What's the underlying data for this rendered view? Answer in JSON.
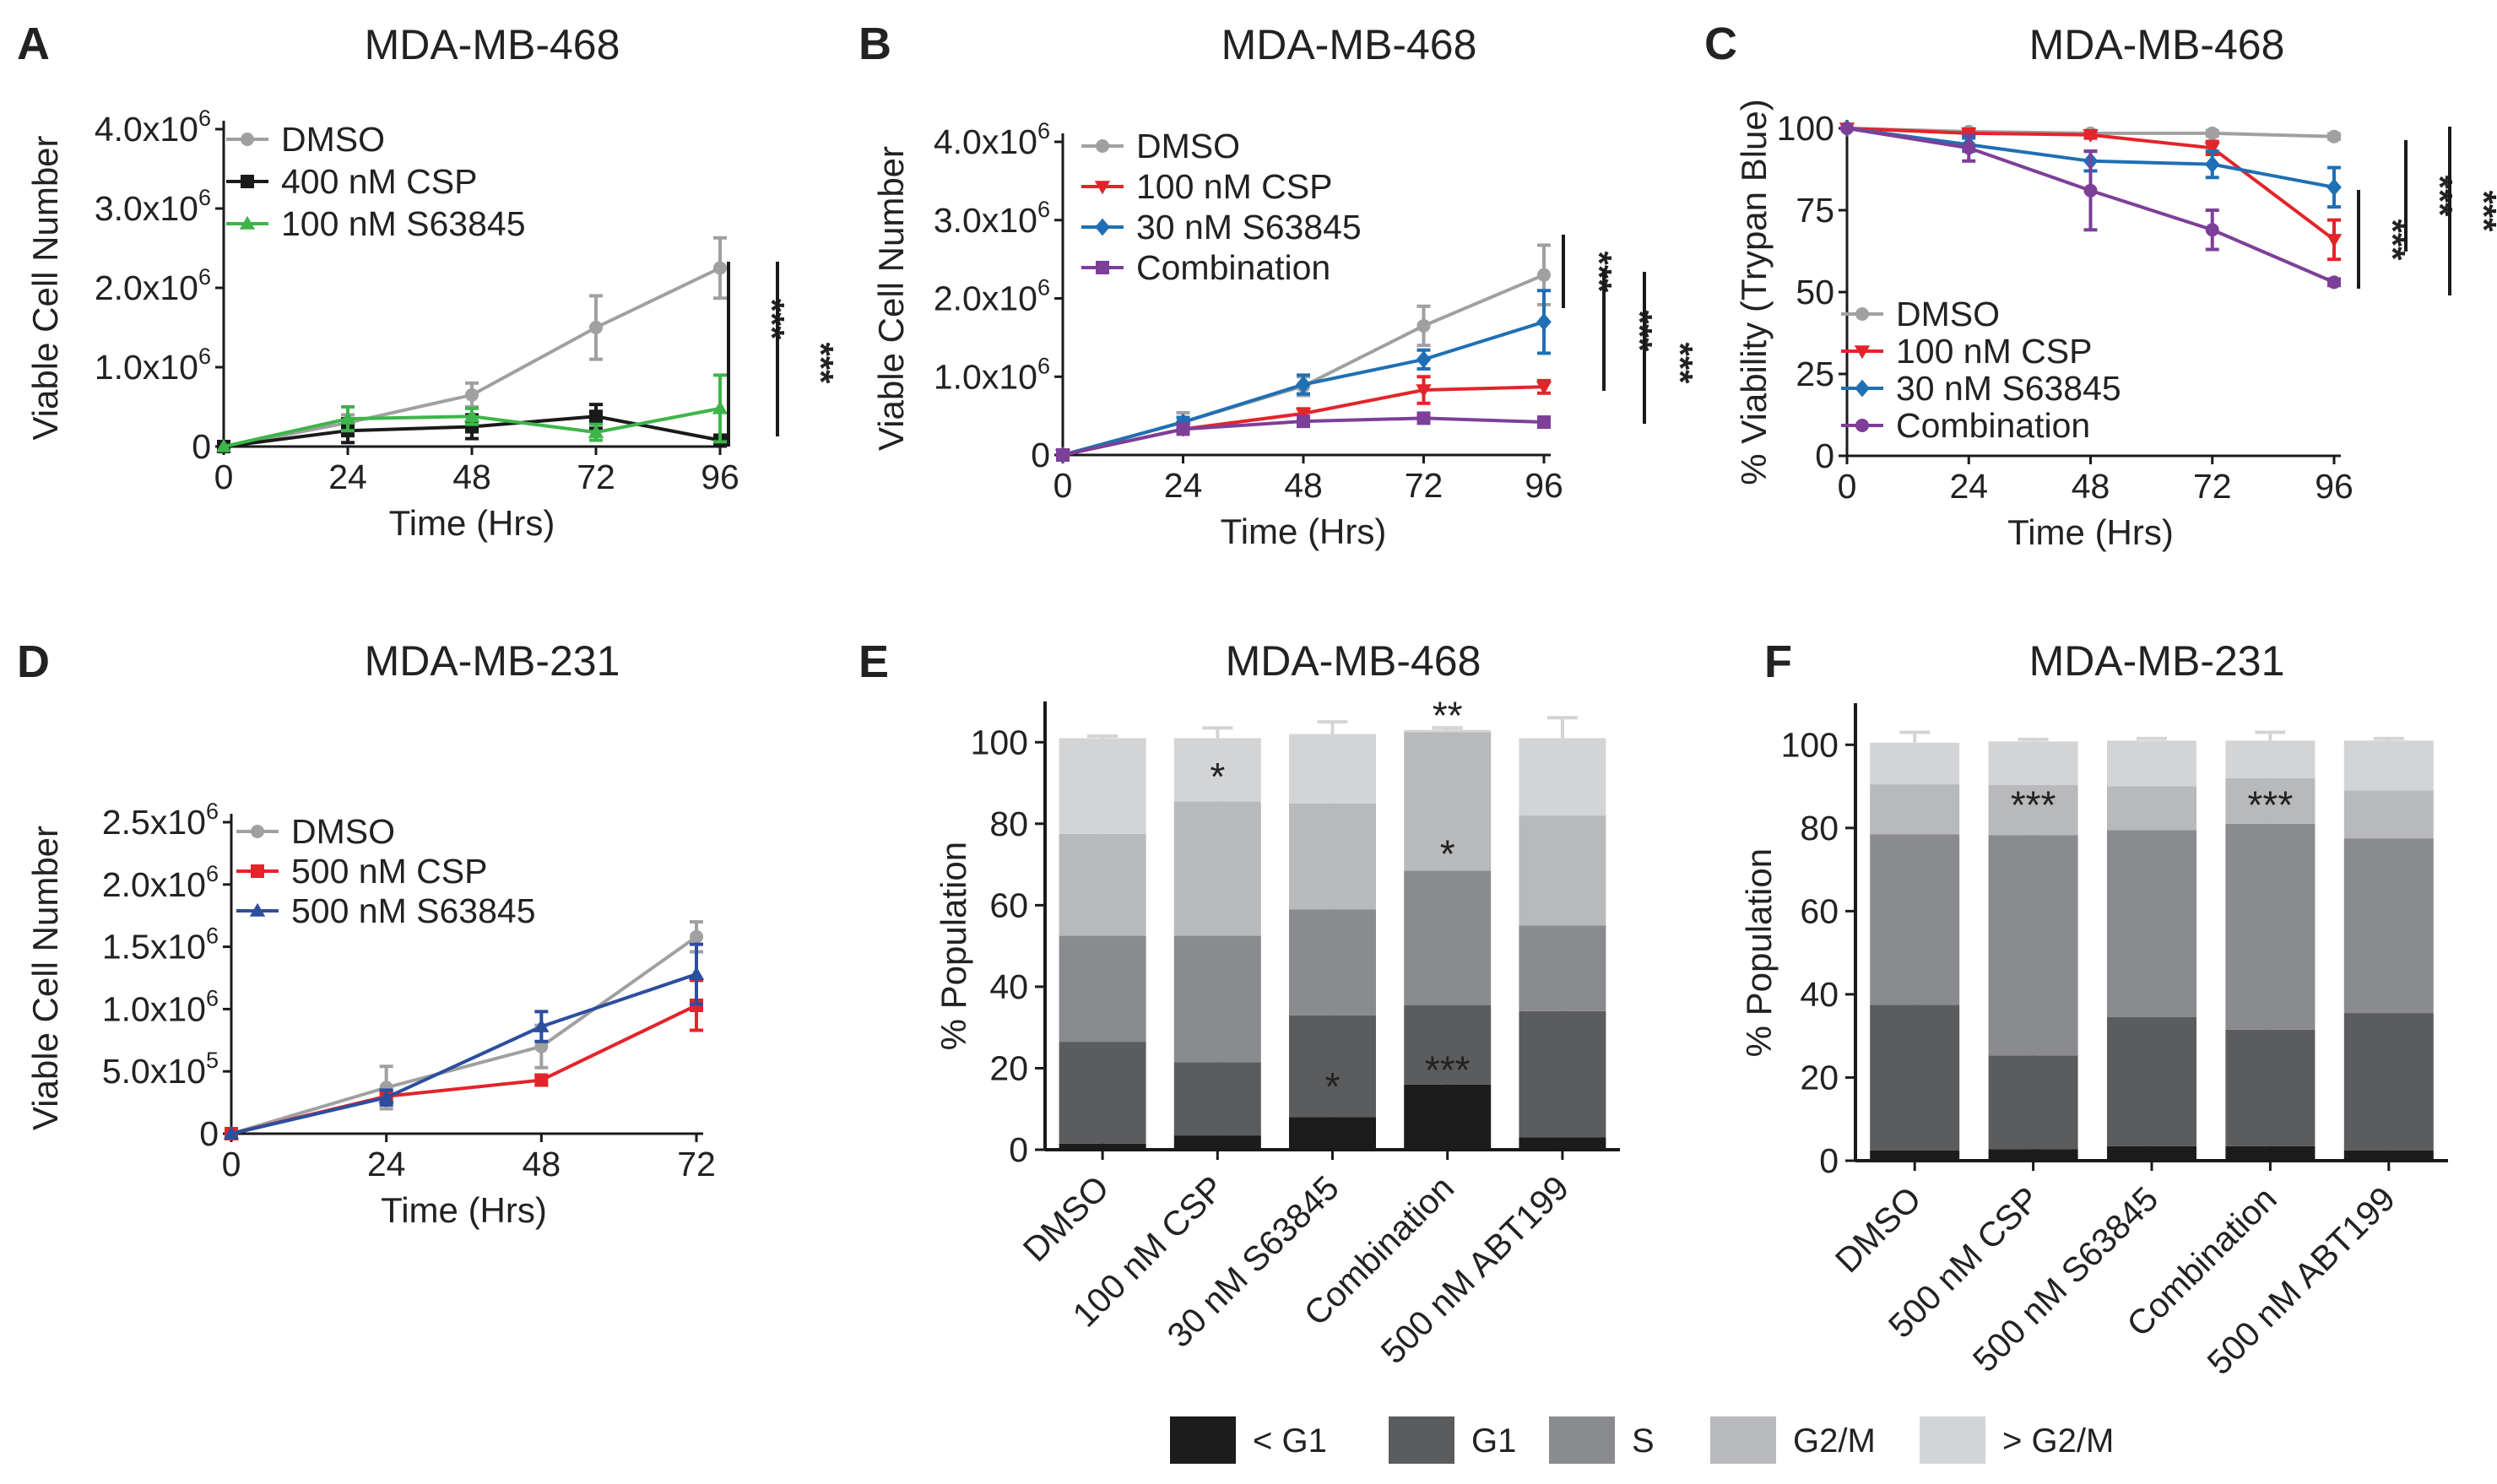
{
  "figure": {
    "legend_cell_cycle": [
      "< G1",
      "G1",
      "S",
      "G2/M",
      "> G2/M"
    ],
    "phase_colors": [
      "#1c1c1c",
      "#5b5c5e",
      "#8a8b8e",
      "#b8b9bb",
      "#d3d4d6"
    ]
  },
  "chart_data": [
    {
      "panel": "A",
      "title": "MDA-MB-468",
      "type": "line",
      "xlabel": "Time (Hrs)",
      "ylabel": "Viable Cell Number",
      "xlim": [
        0,
        96
      ],
      "ylim": [
        0,
        4000000
      ],
      "xticks": [
        0,
        24,
        48,
        72,
        96
      ],
      "xtick_labels": [
        "0",
        "24",
        "48",
        "72",
        "96"
      ],
      "yticks": [
        0,
        1000000,
        2000000,
        3000000,
        4000000
      ],
      "ytick_labels": [
        {
          "base": "0",
          "exp": ""
        },
        {
          "base": "1.0x10",
          "exp": "6"
        },
        {
          "base": "2.0x10",
          "exp": "6"
        },
        {
          "base": "3.0x10",
          "exp": "6"
        },
        {
          "base": "4.0x10",
          "exp": "6"
        }
      ],
      "x": [
        0,
        24,
        48,
        72,
        96
      ],
      "series": [
        {
          "name": "DMSO",
          "color": "#a0a0a0",
          "marker": "circle",
          "values": [
            0,
            300000,
            650000,
            1500000,
            2250000
          ],
          "errors": [
            0,
            100000,
            150000,
            400000,
            380000
          ]
        },
        {
          "name": "400 nM CSP",
          "color": "#1a1a1a",
          "marker": "square",
          "values": [
            0,
            200000,
            250000,
            380000,
            80000
          ],
          "errors": [
            0,
            150000,
            150000,
            150000,
            40000
          ]
        },
        {
          "name": "100 nM S63845",
          "color": "#3db54a",
          "marker": "triangle",
          "values": [
            0,
            350000,
            380000,
            180000,
            480000
          ],
          "errors": [
            0,
            150000,
            100000,
            100000,
            420000
          ]
        }
      ],
      "significance": [
        "***",
        "***"
      ]
    },
    {
      "panel": "B",
      "title": "MDA-MB-468",
      "type": "line",
      "xlabel": "Time (Hrs)",
      "ylabel": "Viable Cell Number",
      "xlim": [
        0,
        96
      ],
      "ylim": [
        0,
        4000000
      ],
      "xticks": [
        0,
        24,
        48,
        72,
        96
      ],
      "xtick_labels": [
        "0",
        "24",
        "48",
        "72",
        "96"
      ],
      "yticks": [
        0,
        1000000,
        2000000,
        3000000,
        4000000
      ],
      "ytick_labels": [
        {
          "base": "0",
          "exp": ""
        },
        {
          "base": "1.0x10",
          "exp": "6"
        },
        {
          "base": "2.0x10",
          "exp": "6"
        },
        {
          "base": "3.0x10",
          "exp": "6"
        },
        {
          "base": "4.0x10",
          "exp": "6"
        }
      ],
      "x": [
        0,
        24,
        48,
        72,
        96
      ],
      "series": [
        {
          "name": "DMSO",
          "color": "#a0a0a0",
          "marker": "circle",
          "values": [
            0,
            420000,
            880000,
            1650000,
            2300000
          ],
          "errors": [
            0,
            120000,
            120000,
            250000,
            380000
          ]
        },
        {
          "name": "100 nM CSP",
          "color": "#e3242b",
          "marker": "triangle-down",
          "values": [
            0,
            330000,
            530000,
            830000,
            870000
          ],
          "errors": [
            0,
            60000,
            60000,
            170000,
            80000
          ]
        },
        {
          "name": "30 nM S63845",
          "color": "#1f6fb4",
          "marker": "diamond",
          "values": [
            0,
            420000,
            900000,
            1220000,
            1700000
          ],
          "errors": [
            0,
            60000,
            120000,
            120000,
            400000
          ]
        },
        {
          "name": "Combination",
          "color": "#7d3f98",
          "marker": "square",
          "values": [
            0,
            330000,
            430000,
            470000,
            420000
          ],
          "errors": [
            0,
            40000,
            50000,
            50000,
            50000
          ]
        }
      ],
      "significance": [
        "***",
        "***",
        "***"
      ]
    },
    {
      "panel": "C",
      "title": "MDA-MB-468",
      "type": "line",
      "xlabel": "Time (Hrs)",
      "ylabel": "% Viability (Trypan Blue)",
      "xlim": [
        0,
        96
      ],
      "ylim": [
        0,
        100
      ],
      "xticks": [
        0,
        24,
        48,
        72,
        96
      ],
      "xtick_labels": [
        "0",
        "24",
        "48",
        "72",
        "96"
      ],
      "yticks": [
        0,
        25,
        50,
        75,
        100
      ],
      "ytick_labels": [
        {
          "base": "0",
          "exp": ""
        },
        {
          "base": "25",
          "exp": ""
        },
        {
          "base": "50",
          "exp": ""
        },
        {
          "base": "75",
          "exp": ""
        },
        {
          "base": "100",
          "exp": ""
        }
      ],
      "x": [
        0,
        24,
        48,
        72,
        96
      ],
      "series": [
        {
          "name": "DMSO",
          "color": "#a0a0a0",
          "marker": "circle",
          "values": [
            100,
            99,
            98.5,
            98.5,
            97.5
          ],
          "errors": [
            0,
            0.8,
            0.8,
            0.8,
            0.8
          ]
        },
        {
          "name": "100 nM CSP",
          "color": "#e3242b",
          "marker": "triangle-down",
          "values": [
            100,
            98.5,
            98,
            94,
            66
          ],
          "errors": [
            0,
            1,
            1,
            2,
            6
          ]
        },
        {
          "name": "30 nM S63845",
          "color": "#1f6fb4",
          "marker": "diamond",
          "values": [
            100,
            95,
            90,
            89,
            82
          ],
          "errors": [
            0,
            2,
            3,
            4,
            6
          ]
        },
        {
          "name": "Combination",
          "color": "#7d3f98",
          "marker": "circle",
          "values": [
            100,
            94,
            81,
            69,
            53
          ],
          "errors": [
            0,
            4,
            12,
            6,
            1
          ]
        }
      ],
      "significance": [
        "***",
        "***",
        "***"
      ]
    },
    {
      "panel": "D",
      "title": "MDA-MB-231",
      "type": "line",
      "xlabel": "Time (Hrs)",
      "ylabel": "Viable Cell Number",
      "xlim": [
        0,
        72
      ],
      "ylim": [
        0,
        2500000
      ],
      "xticks": [
        0,
        24,
        48,
        72
      ],
      "xtick_labels": [
        "0",
        "24",
        "48",
        "72"
      ],
      "yticks": [
        0,
        500000,
        1000000,
        1500000,
        2000000,
        2500000
      ],
      "ytick_labels": [
        {
          "base": "0",
          "exp": ""
        },
        {
          "base": "5.0x10",
          "exp": "5"
        },
        {
          "base": "1.0x10",
          "exp": "6"
        },
        {
          "base": "1.5x10",
          "exp": "6"
        },
        {
          "base": "2.0x10",
          "exp": "6"
        },
        {
          "base": "2.5x10",
          "exp": "6"
        }
      ],
      "x": [
        0,
        24,
        48,
        72
      ],
      "series": [
        {
          "name": "DMSO",
          "color": "#a0a0a0",
          "marker": "circle",
          "values": [
            0,
            370000,
            700000,
            1580000
          ],
          "errors": [
            0,
            170000,
            170000,
            120000
          ]
        },
        {
          "name": "500 nM CSP",
          "color": "#e3242b",
          "marker": "square",
          "values": [
            0,
            300000,
            430000,
            1030000
          ],
          "errors": [
            0,
            40000,
            40000,
            200000
          ]
        },
        {
          "name": "500 nM S63845",
          "color": "#2d4e9e",
          "marker": "triangle",
          "values": [
            0,
            290000,
            860000,
            1280000
          ],
          "errors": [
            0,
            60000,
            120000,
            240000
          ]
        }
      ],
      "significance": []
    },
    {
      "panel": "E",
      "title": "MDA-MB-468",
      "type": "stacked-bar",
      "xlabel": "",
      "ylabel": "% Population",
      "ylim": [
        0,
        110
      ],
      "yticks": [
        0,
        20,
        40,
        60,
        80,
        100
      ],
      "categories": [
        "DMSO",
        "100 nM CSP",
        "30 nM S63845",
        "Combination",
        "500 nM ABT199"
      ],
      "series": [
        {
          "name": "< G1",
          "values": [
            1.5,
            3.5,
            8,
            16,
            3
          ],
          "errors": [
            0.5,
            1,
            1,
            1.5,
            2
          ]
        },
        {
          "name": "G1",
          "values": [
            25,
            18,
            25,
            19.5,
            31
          ],
          "errors": [
            0.5,
            2,
            1,
            1,
            7
          ]
        },
        {
          "name": "S",
          "values": [
            26,
            31,
            26,
            33,
            21
          ],
          "errors": [
            0.5,
            1.5,
            2,
            0.5,
            3
          ]
        },
        {
          "name": "G2/M",
          "values": [
            25,
            33,
            26,
            34,
            27
          ],
          "errors": [
            1,
            1,
            1,
            1,
            4
          ]
        },
        {
          "name": "> G2/M",
          "values": [
            23.5,
            15.5,
            17,
            0.5,
            19
          ],
          "errors": [
            0.5,
            2.5,
            3,
            0.5,
            5
          ]
        }
      ],
      "significance": [
        {
          "category": 1,
          "level": 92,
          "text": "*"
        },
        {
          "category": 2,
          "level": 16,
          "text": "*"
        },
        {
          "category": 3,
          "level": 107,
          "text": "**"
        },
        {
          "category": 3,
          "level": 73,
          "text": "*"
        },
        {
          "category": 3,
          "level": 20,
          "text": "***"
        }
      ]
    },
    {
      "panel": "F",
      "title": "MDA-MB-231",
      "type": "stacked-bar",
      "xlabel": "",
      "ylabel": "% Population",
      "ylim": [
        0,
        110
      ],
      "yticks": [
        0,
        20,
        40,
        60,
        80,
        100
      ],
      "categories": [
        "DMSO",
        "500 nM CSP",
        "500 nM S63845",
        "Combination",
        "500 nM ABT199"
      ],
      "series": [
        {
          "name": "< G1",
          "values": [
            2.5,
            2.8,
            3.5,
            3.5,
            2.5
          ],
          "errors": [
            0.5,
            0.5,
            0.5,
            1.5,
            0.5
          ]
        },
        {
          "name": "G1",
          "values": [
            35,
            22.5,
            31,
            28,
            33
          ],
          "errors": [
            1,
            3.5,
            1,
            0.5,
            0.5
          ]
        },
        {
          "name": "S",
          "values": [
            41,
            53,
            45,
            49.5,
            42
          ],
          "errors": [
            0.5,
            3.5,
            0.5,
            0.5,
            1.5
          ]
        },
        {
          "name": "G2/M",
          "values": [
            12,
            12,
            10.5,
            11,
            11.5
          ],
          "errors": [
            0.5,
            1,
            0.5,
            1.5,
            0.5
          ]
        },
        {
          "name": "> G2/M",
          "values": [
            10,
            10.5,
            11,
            9,
            12
          ],
          "errors": [
            2.5,
            0.5,
            0.5,
            2,
            0.5
          ]
        }
      ],
      "significance": [
        {
          "category": 1,
          "level": 86,
          "text": "***"
        },
        {
          "category": 3,
          "level": 86,
          "text": "***"
        }
      ]
    }
  ]
}
